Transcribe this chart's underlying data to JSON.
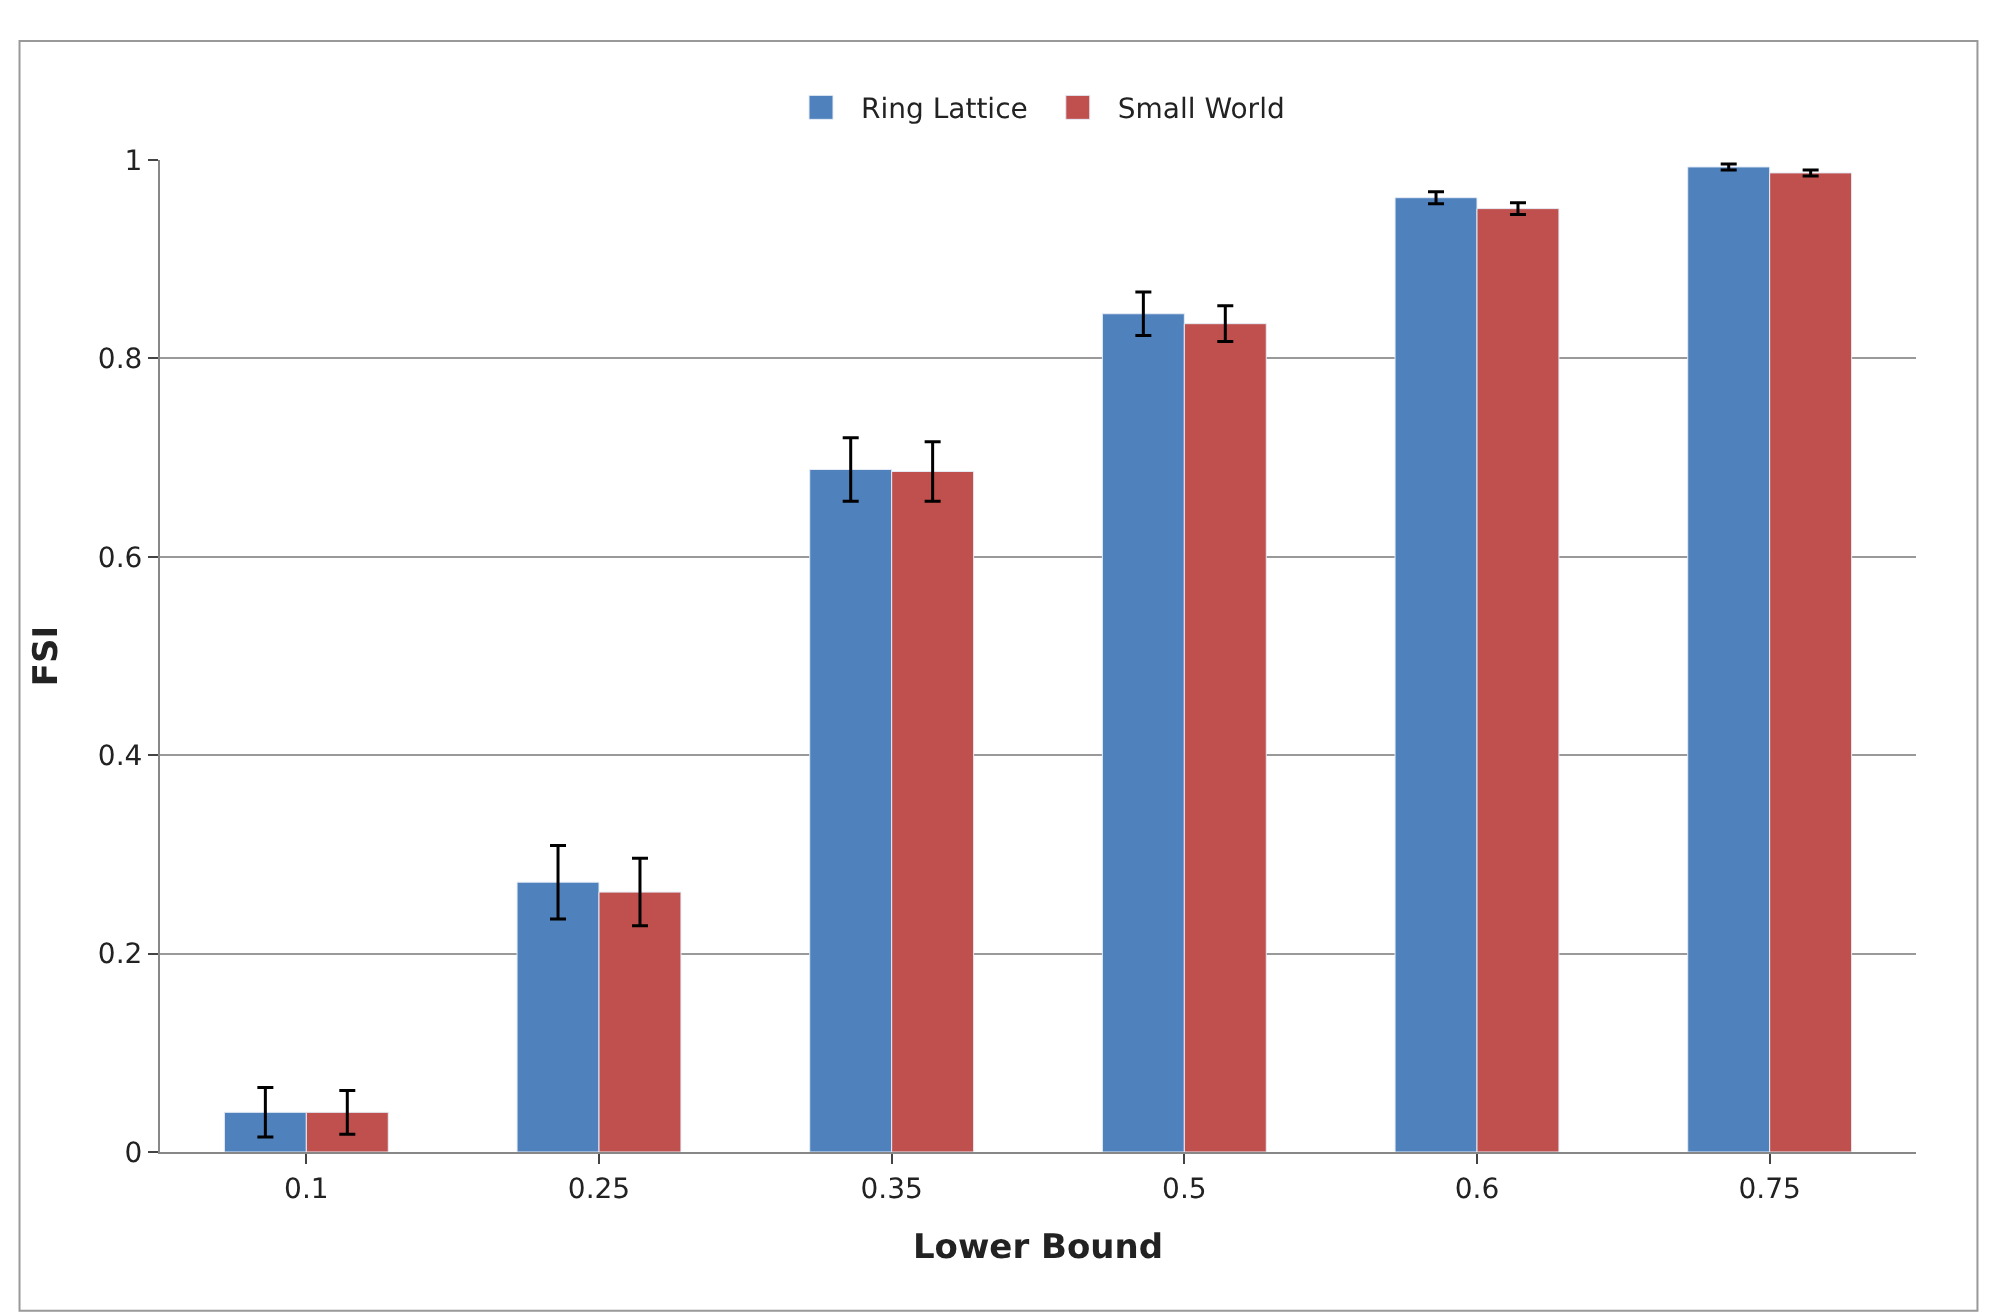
{
  "chart_data": {
    "type": "bar",
    "xlabel": "Lower Bound",
    "ylabel": "FSI",
    "categories": [
      "0.1",
      "0.25",
      "0.35",
      "0.5",
      "0.6",
      "0.75"
    ],
    "series": [
      {
        "name": "Ring Lattice",
        "color": "#4f81bd",
        "values": [
          0.04,
          0.272,
          0.688,
          0.845,
          0.962,
          0.993
        ],
        "errors": [
          0.025,
          0.037,
          0.032,
          0.022,
          0.006,
          0.003
        ]
      },
      {
        "name": "Small World",
        "color": "#c0504d",
        "values": [
          0.04,
          0.262,
          0.686,
          0.835,
          0.951,
          0.987
        ],
        "errors": [
          0.022,
          0.034,
          0.03,
          0.018,
          0.006,
          0.003
        ]
      }
    ],
    "ylim": [
      0,
      1
    ],
    "yticks": [
      0,
      0.2,
      0.4,
      0.6,
      0.8,
      1
    ],
    "grid": "y",
    "legend": "top"
  }
}
